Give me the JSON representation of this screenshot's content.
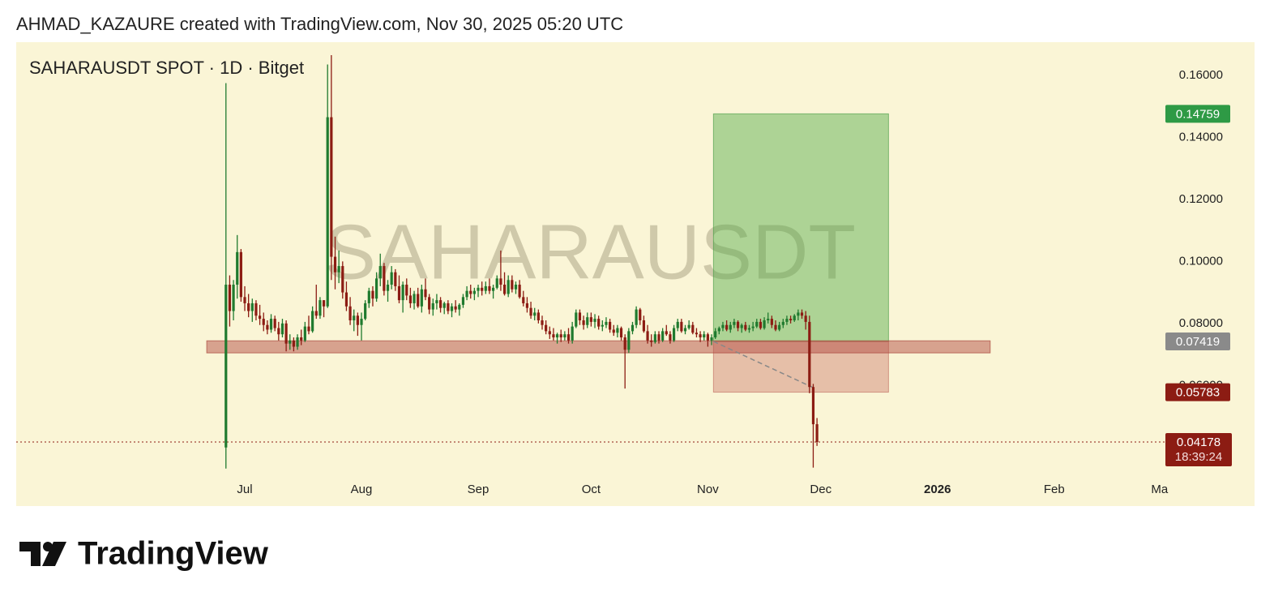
{
  "header": {
    "text": "AHMAD_KAZAURE created with TradingView.com, Nov 30, 2025 05:20 UTC"
  },
  "chart_data": {
    "type": "candlestick",
    "title": "SAHARAUSDT SPOT · 1D · Bitget",
    "watermark": "SAHARAUSDT",
    "up_color": "#1f7a2e",
    "down_color": "#8c1c13",
    "xlim": [
      -60.71,
      244.33
    ],
    "ylim": [
      0.03,
      0.1707
    ],
    "xticks": [
      {
        "value": 0,
        "label": "Jul"
      },
      {
        "value": 31,
        "label": "Aug"
      },
      {
        "value": 62,
        "label": "Sep"
      },
      {
        "value": 92,
        "label": "Oct"
      },
      {
        "value": 123,
        "label": "Nov"
      },
      {
        "value": 153,
        "label": "Dec"
      },
      {
        "value": 184,
        "label": "2026"
      },
      {
        "value": 215,
        "label": "Feb"
      },
      {
        "value": 243,
        "label": "Ma"
      }
    ],
    "yticks": [
      {
        "value": 0.06,
        "label": "0.06000"
      },
      {
        "value": 0.08,
        "label": "0.08000"
      },
      {
        "value": 0.1,
        "label": "0.10000"
      },
      {
        "value": 0.12,
        "label": "0.12000"
      },
      {
        "value": 0.14,
        "label": "0.14000"
      },
      {
        "value": 0.16,
        "label": "0.16000"
      }
    ],
    "x": [
      -5,
      -4,
      -3,
      -2,
      -1,
      0,
      1,
      2,
      3,
      4,
      5,
      6,
      7,
      8,
      9,
      10,
      11,
      12,
      13,
      14,
      15,
      16,
      17,
      18,
      19,
      20,
      21,
      22,
      23,
      24,
      25,
      26,
      27,
      28,
      29,
      30,
      31,
      32,
      33,
      34,
      35,
      36,
      37,
      38,
      39,
      40,
      41,
      42,
      43,
      44,
      45,
      46,
      47,
      48,
      49,
      50,
      51,
      52,
      53,
      54,
      55,
      56,
      57,
      58,
      59,
      60,
      61,
      62,
      63,
      64,
      65,
      66,
      67,
      68,
      69,
      70,
      71,
      72,
      73,
      74,
      75,
      76,
      77,
      78,
      79,
      80,
      81,
      82,
      83,
      84,
      85,
      86,
      87,
      88,
      89,
      90,
      91,
      92,
      93,
      94,
      95,
      96,
      97,
      98,
      99,
      100,
      101,
      102,
      103,
      104,
      105,
      106,
      107,
      108,
      109,
      110,
      111,
      112,
      113,
      114,
      115,
      116,
      117,
      118,
      119,
      120,
      121,
      122,
      123,
      124,
      125,
      126,
      127,
      128,
      129,
      130,
      131,
      132,
      133,
      134,
      135,
      136,
      137,
      138,
      139,
      140,
      141,
      142,
      143,
      144,
      145,
      146,
      147,
      148,
      149,
      150,
      151,
      152
    ],
    "ohlc": [
      [
        0.04,
        0.1575,
        0.0332,
        0.0925
      ],
      [
        0.0925,
        0.0955,
        0.079,
        0.084
      ],
      [
        0.084,
        0.094,
        0.081,
        0.0925
      ],
      [
        0.0925,
        0.1085,
        0.088,
        0.103
      ],
      [
        0.103,
        0.104,
        0.087,
        0.0885
      ],
      [
        0.0885,
        0.092,
        0.084,
        0.0865
      ],
      [
        0.0865,
        0.0895,
        0.082,
        0.084
      ],
      [
        0.084,
        0.088,
        0.0805,
        0.0865
      ],
      [
        0.0865,
        0.0875,
        0.081,
        0.0825
      ],
      [
        0.0825,
        0.086,
        0.0795,
        0.0815
      ],
      [
        0.0815,
        0.0835,
        0.0775,
        0.0795
      ],
      [
        0.0795,
        0.081,
        0.0765,
        0.078
      ],
      [
        0.078,
        0.083,
        0.077,
        0.0815
      ],
      [
        0.0815,
        0.0825,
        0.0775,
        0.0785
      ],
      [
        0.0785,
        0.0805,
        0.0745,
        0.0765
      ],
      [
        0.0765,
        0.0815,
        0.0755,
        0.08
      ],
      [
        0.08,
        0.081,
        0.071,
        0.0735
      ],
      [
        0.0735,
        0.0765,
        0.0715,
        0.0745
      ],
      [
        0.0745,
        0.0755,
        0.071,
        0.0725
      ],
      [
        0.0725,
        0.0765,
        0.0715,
        0.0755
      ],
      [
        0.0755,
        0.078,
        0.073,
        0.0745
      ],
      [
        0.0745,
        0.0805,
        0.074,
        0.079
      ],
      [
        0.079,
        0.0825,
        0.0765,
        0.0775
      ],
      [
        0.0775,
        0.0855,
        0.077,
        0.084
      ],
      [
        0.084,
        0.0925,
        0.0815,
        0.0825
      ],
      [
        0.0825,
        0.0885,
        0.0815,
        0.0875
      ],
      [
        0.0875,
        0.0875,
        0.082,
        0.0855
      ],
      [
        0.0855,
        0.1635,
        0.085,
        0.1465
      ],
      [
        0.1465,
        0.1665,
        0.094,
        0.1015
      ],
      [
        0.1015,
        0.108,
        0.091,
        0.0965
      ],
      [
        0.0965,
        0.1035,
        0.093,
        0.0985
      ],
      [
        0.0985,
        0.1,
        0.088,
        0.09
      ],
      [
        0.09,
        0.0935,
        0.084,
        0.0855
      ],
      [
        0.0855,
        0.0885,
        0.0795,
        0.081
      ],
      [
        0.081,
        0.0845,
        0.0775,
        0.0825
      ],
      [
        0.0825,
        0.0835,
        0.076,
        0.0795
      ],
      [
        0.0795,
        0.0835,
        0.0745,
        0.0815
      ],
      [
        0.0815,
        0.0875,
        0.081,
        0.0865
      ],
      [
        0.0865,
        0.0915,
        0.085,
        0.0905
      ],
      [
        0.0905,
        0.092,
        0.0855,
        0.088
      ],
      [
        0.088,
        0.0965,
        0.087,
        0.0945
      ],
      [
        0.0945,
        0.1025,
        0.092,
        0.0985
      ],
      [
        0.0985,
        0.0995,
        0.089,
        0.0905
      ],
      [
        0.0905,
        0.094,
        0.087,
        0.0925
      ],
      [
        0.0925,
        0.0985,
        0.091,
        0.0965
      ],
      [
        0.0965,
        0.0975,
        0.0905,
        0.092
      ],
      [
        0.092,
        0.0955,
        0.0865,
        0.0875
      ],
      [
        0.0875,
        0.0935,
        0.0835,
        0.0925
      ],
      [
        0.0925,
        0.0945,
        0.0875,
        0.089
      ],
      [
        0.089,
        0.0915,
        0.085,
        0.0865
      ],
      [
        0.0865,
        0.0905,
        0.0845,
        0.0895
      ],
      [
        0.0895,
        0.0915,
        0.085,
        0.0855
      ],
      [
        0.0855,
        0.0925,
        0.0835,
        0.091
      ],
      [
        0.091,
        0.0945,
        0.0875,
        0.0885
      ],
      [
        0.0885,
        0.0895,
        0.083,
        0.0845
      ],
      [
        0.0845,
        0.088,
        0.0825,
        0.0865
      ],
      [
        0.0865,
        0.0895,
        0.0845,
        0.0875
      ],
      [
        0.0875,
        0.0885,
        0.0835,
        0.085
      ],
      [
        0.085,
        0.087,
        0.083,
        0.0865
      ],
      [
        0.0865,
        0.0875,
        0.083,
        0.084
      ],
      [
        0.084,
        0.0865,
        0.082,
        0.0855
      ],
      [
        0.0855,
        0.0875,
        0.0835,
        0.0845
      ],
      [
        0.0845,
        0.0865,
        0.0825,
        0.086
      ],
      [
        0.086,
        0.0895,
        0.085,
        0.0885
      ],
      [
        0.0885,
        0.092,
        0.0875,
        0.0905
      ],
      [
        0.0905,
        0.0925,
        0.088,
        0.0895
      ],
      [
        0.0895,
        0.0915,
        0.0875,
        0.0905
      ],
      [
        0.0905,
        0.0925,
        0.0885,
        0.0915
      ],
      [
        0.0915,
        0.0935,
        0.089,
        0.0905
      ],
      [
        0.0905,
        0.0935,
        0.0895,
        0.092
      ],
      [
        0.092,
        0.0945,
        0.0895,
        0.0905
      ],
      [
        0.0905,
        0.0925,
        0.088,
        0.0915
      ],
      [
        0.0915,
        0.0955,
        0.091,
        0.0945
      ],
      [
        0.0945,
        0.1035,
        0.0905,
        0.0925
      ],
      [
        0.0925,
        0.0965,
        0.089,
        0.0895
      ],
      [
        0.0895,
        0.0955,
        0.0885,
        0.094
      ],
      [
        0.094,
        0.0955,
        0.09,
        0.091
      ],
      [
        0.091,
        0.0935,
        0.0895,
        0.0925
      ],
      [
        0.0925,
        0.094,
        0.088,
        0.0885
      ],
      [
        0.0885,
        0.0905,
        0.0855,
        0.0865
      ],
      [
        0.0865,
        0.0885,
        0.0835,
        0.085
      ],
      [
        0.085,
        0.087,
        0.0815,
        0.0825
      ],
      [
        0.0825,
        0.085,
        0.081,
        0.0835
      ],
      [
        0.0835,
        0.0845,
        0.08,
        0.081
      ],
      [
        0.081,
        0.0825,
        0.078,
        0.0795
      ],
      [
        0.0795,
        0.081,
        0.0765,
        0.0775
      ],
      [
        0.0775,
        0.079,
        0.075,
        0.0765
      ],
      [
        0.0765,
        0.0785,
        0.0745,
        0.0755
      ],
      [
        0.0755,
        0.077,
        0.0735,
        0.0765
      ],
      [
        0.0765,
        0.078,
        0.074,
        0.0755
      ],
      [
        0.0755,
        0.0775,
        0.0745,
        0.0765
      ],
      [
        0.0765,
        0.0785,
        0.0735,
        0.0745
      ],
      [
        0.0745,
        0.0805,
        0.0735,
        0.079
      ],
      [
        0.079,
        0.0845,
        0.0785,
        0.0835
      ],
      [
        0.0835,
        0.0845,
        0.0795,
        0.081
      ],
      [
        0.081,
        0.0825,
        0.078,
        0.0795
      ],
      [
        0.0795,
        0.0835,
        0.0785,
        0.082
      ],
      [
        0.082,
        0.0835,
        0.079,
        0.0805
      ],
      [
        0.0805,
        0.083,
        0.0785,
        0.0815
      ],
      [
        0.0815,
        0.0825,
        0.078,
        0.079
      ],
      [
        0.079,
        0.081,
        0.0775,
        0.0795
      ],
      [
        0.0795,
        0.082,
        0.0785,
        0.0805
      ],
      [
        0.0805,
        0.0815,
        0.077,
        0.078
      ],
      [
        0.078,
        0.0795,
        0.076,
        0.077
      ],
      [
        0.077,
        0.0795,
        0.0755,
        0.0785
      ],
      [
        0.0785,
        0.079,
        0.0745,
        0.0755
      ],
      [
        0.0755,
        0.0765,
        0.059,
        0.0715
      ],
      [
        0.0715,
        0.0785,
        0.0705,
        0.0775
      ],
      [
        0.0775,
        0.0805,
        0.0765,
        0.0795
      ],
      [
        0.0795,
        0.0855,
        0.0785,
        0.0845
      ],
      [
        0.0845,
        0.085,
        0.0795,
        0.081
      ],
      [
        0.081,
        0.0825,
        0.077,
        0.0775
      ],
      [
        0.0775,
        0.0795,
        0.0735,
        0.0745
      ],
      [
        0.0745,
        0.0765,
        0.0725,
        0.074
      ],
      [
        0.074,
        0.0775,
        0.0735,
        0.0765
      ],
      [
        0.0765,
        0.0775,
        0.0735,
        0.0745
      ],
      [
        0.0745,
        0.0785,
        0.074,
        0.0775
      ],
      [
        0.0775,
        0.0795,
        0.076,
        0.0765
      ],
      [
        0.0765,
        0.0775,
        0.0735,
        0.0745
      ],
      [
        0.0745,
        0.0795,
        0.074,
        0.0785
      ],
      [
        0.0785,
        0.0815,
        0.0775,
        0.0805
      ],
      [
        0.0805,
        0.0815,
        0.077,
        0.0775
      ],
      [
        0.0775,
        0.0795,
        0.0765,
        0.0785
      ],
      [
        0.0785,
        0.081,
        0.078,
        0.0795
      ],
      [
        0.0795,
        0.0805,
        0.0765,
        0.077
      ],
      [
        0.077,
        0.0785,
        0.0755,
        0.0765
      ],
      [
        0.0765,
        0.0775,
        0.074,
        0.0755
      ],
      [
        0.0755,
        0.0775,
        0.0745,
        0.0765
      ],
      [
        0.0765,
        0.077,
        0.0725,
        0.0745
      ],
      [
        0.0745,
        0.0765,
        0.073,
        0.0755
      ],
      [
        0.0755,
        0.0785,
        0.075,
        0.0775
      ],
      [
        0.0775,
        0.079,
        0.0765,
        0.0785
      ],
      [
        0.0785,
        0.0805,
        0.0775,
        0.0795
      ],
      [
        0.0795,
        0.081,
        0.0775,
        0.078
      ],
      [
        0.078,
        0.0805,
        0.077,
        0.0795
      ],
      [
        0.0795,
        0.0815,
        0.0785,
        0.0805
      ],
      [
        0.0805,
        0.081,
        0.0775,
        0.0785
      ],
      [
        0.0785,
        0.08,
        0.077,
        0.0795
      ],
      [
        0.0795,
        0.0805,
        0.0775,
        0.078
      ],
      [
        0.078,
        0.0795,
        0.077,
        0.0785
      ],
      [
        0.0785,
        0.0805,
        0.0775,
        0.079
      ],
      [
        0.079,
        0.0815,
        0.0785,
        0.0805
      ],
      [
        0.0805,
        0.0815,
        0.078,
        0.0785
      ],
      [
        0.0785,
        0.082,
        0.078,
        0.081
      ],
      [
        0.081,
        0.0835,
        0.08,
        0.0815
      ],
      [
        0.0815,
        0.0825,
        0.0785,
        0.0795
      ],
      [
        0.0795,
        0.081,
        0.0775,
        0.078
      ],
      [
        0.078,
        0.0805,
        0.0775,
        0.0795
      ],
      [
        0.0795,
        0.0815,
        0.0785,
        0.0805
      ],
      [
        0.0805,
        0.0825,
        0.0795,
        0.0815
      ],
      [
        0.0815,
        0.0825,
        0.08,
        0.081
      ],
      [
        0.081,
        0.083,
        0.0805,
        0.0825
      ],
      [
        0.0825,
        0.0845,
        0.081,
        0.0835
      ],
      [
        0.0835,
        0.0845,
        0.0815,
        0.0825
      ],
      [
        0.0825,
        0.084,
        0.078,
        0.0805
      ],
      [
        0.0805,
        0.0825,
        0.0575,
        0.0595
      ],
      [
        0.0595,
        0.0605,
        0.0335,
        0.0475
      ],
      [
        0.0475,
        0.0495,
        0.0405,
        0.04178
      ]
    ],
    "zone": {
      "x": [
        -10.1,
        198
      ],
      "y": [
        0.0705,
        0.0744
      ]
    },
    "position": {
      "x": [
        124.5,
        171
      ],
      "entry": 0.07419,
      "target": 0.14759,
      "stop": 0.05783
    },
    "projection": {
      "x": [
        124.5,
        151
      ],
      "y": [
        0.0742,
        0.0593
      ]
    },
    "price_labels": [
      {
        "value": 0.14759,
        "label": "0.14759",
        "color": "#2e9a45"
      },
      {
        "value": 0.07419,
        "label": "0.07419",
        "color": "#8a8a8a"
      },
      {
        "value": 0.05783,
        "label": "0.05783",
        "color": "#8c1c13"
      }
    ],
    "last_price": {
      "value": 0.04178,
      "label": "0.04178",
      "countdown": "18:39:24",
      "color": "#8c1c13"
    }
  },
  "footer": {
    "logo": "TradingView"
  }
}
